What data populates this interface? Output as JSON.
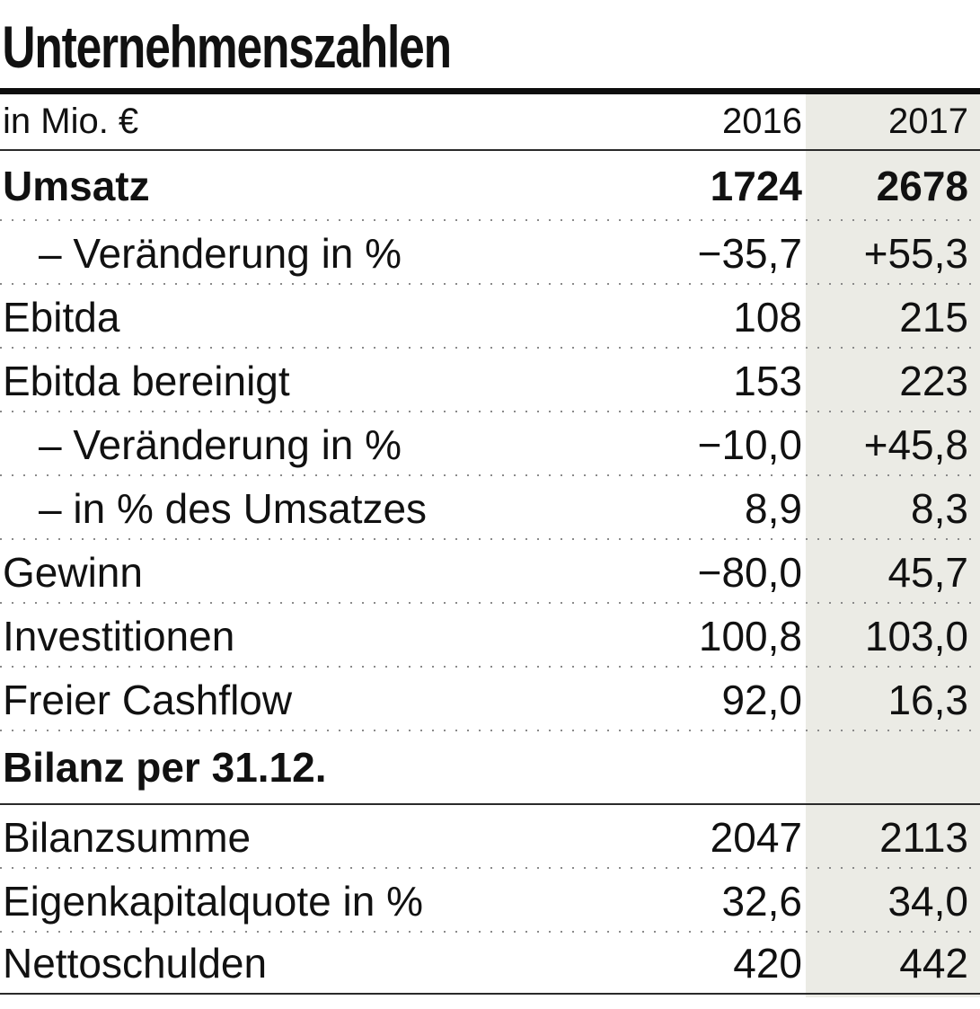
{
  "title": "Unternehmenszahlen",
  "chart_data": {
    "type": "table",
    "title": "Unternehmenszahlen",
    "unit_label": "in Mio. €",
    "columns": [
      "2016",
      "2017"
    ],
    "rows": [
      {
        "label": "Umsatz",
        "values": [
          "1724",
          "2678"
        ],
        "style": "bold"
      },
      {
        "label": "– Veränderung in %",
        "values": [
          "−35,7",
          "+55,3"
        ],
        "style": "indent"
      },
      {
        "label": "Ebitda",
        "values": [
          "108",
          "215"
        ],
        "style": ""
      },
      {
        "label": "Ebitda bereinigt",
        "values": [
          "153",
          "223"
        ],
        "style": ""
      },
      {
        "label": "– Veränderung in %",
        "values": [
          "−10,0",
          "+45,8"
        ],
        "style": "indent"
      },
      {
        "label": "– in % des Umsatzes",
        "values": [
          "8,9",
          "8,3"
        ],
        "style": "indent"
      },
      {
        "label": "Gewinn",
        "values": [
          "−80,0",
          "45,7"
        ],
        "style": ""
      },
      {
        "label": "Investitionen",
        "values": [
          "100,8",
          "103,0"
        ],
        "style": ""
      },
      {
        "label": "Freier Cashflow",
        "values": [
          "92,0",
          "16,3"
        ],
        "style": ""
      },
      {
        "label": "Bilanz per 31.12.",
        "values": [
          "",
          ""
        ],
        "style": "section"
      },
      {
        "label": "Bilanzsumme",
        "values": [
          "2047",
          "2113"
        ],
        "style": ""
      },
      {
        "label": "Eigenkapitalquote in %",
        "values": [
          "32,6",
          "34,0"
        ],
        "style": ""
      },
      {
        "label": "Nettoschulden",
        "values": [
          "420",
          "442"
        ],
        "style": ""
      }
    ],
    "layout_hints": {
      "highlighted_column": "2017",
      "row_separator": "dotted",
      "section_rows": [
        "Bilanz per 31.12."
      ]
    }
  },
  "colors": {
    "highlight_column": "#ebebe5",
    "text": "#111111",
    "rule": "#0d0d0d",
    "dotted_separator": "#8a8a8a"
  }
}
